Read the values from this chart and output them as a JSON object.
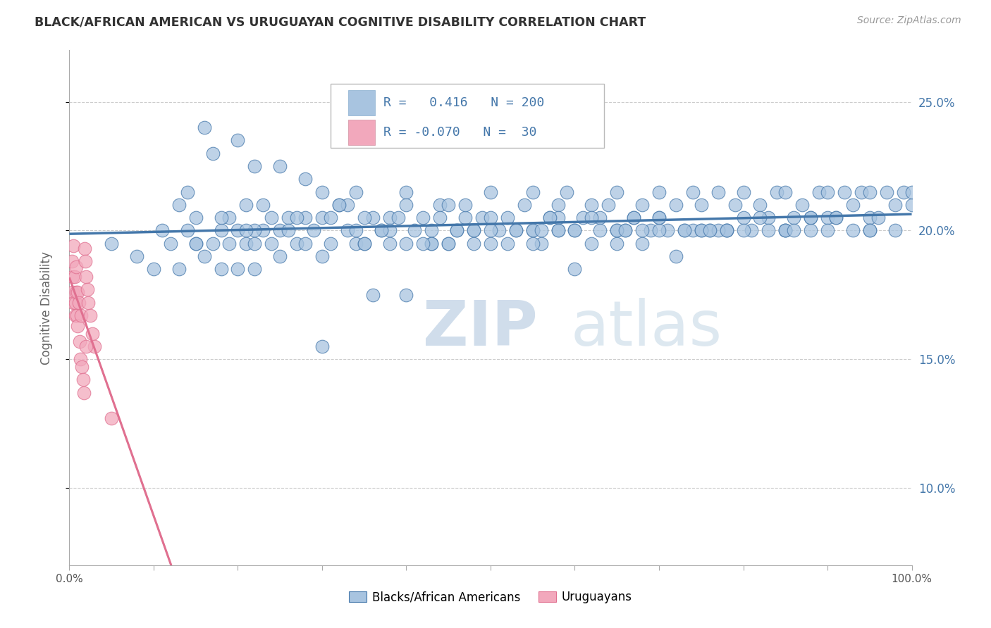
{
  "title": "BLACK/AFRICAN AMERICAN VS URUGUAYAN COGNITIVE DISABILITY CORRELATION CHART",
  "source": "Source: ZipAtlas.com",
  "ylabel": "Cognitive Disability",
  "r_blue": 0.416,
  "n_blue": 200,
  "r_pink": -0.07,
  "n_pink": 30,
  "xlim": [
    0.0,
    1.0
  ],
  "ylim": [
    0.07,
    0.27
  ],
  "yticks": [
    0.1,
    0.15,
    0.2,
    0.25
  ],
  "ytick_labels": [
    "10.0%",
    "15.0%",
    "20.0%",
    "25.0%"
  ],
  "xtick_labels_shown": [
    "0.0%",
    "100.0%"
  ],
  "blue_color": "#a8c4e0",
  "pink_color": "#f2a8bc",
  "blue_line_color": "#4477aa",
  "pink_line_solid_color": "#e07090",
  "pink_line_dash_color": "#f0b8cc",
  "watermark_zip": "ZIP",
  "watermark_atlas": "atlas",
  "background_color": "#ffffff",
  "grid_color": "#cccccc",
  "title_color": "#333333",
  "axis_label_color": "#666666",
  "legend_text_color": "#4477aa",
  "blue_scatter_x": [
    0.05,
    0.08,
    0.1,
    0.11,
    0.12,
    0.13,
    0.14,
    0.15,
    0.15,
    0.16,
    0.17,
    0.18,
    0.18,
    0.19,
    0.19,
    0.2,
    0.2,
    0.21,
    0.21,
    0.22,
    0.22,
    0.23,
    0.24,
    0.24,
    0.25,
    0.25,
    0.26,
    0.27,
    0.28,
    0.28,
    0.29,
    0.3,
    0.3,
    0.31,
    0.32,
    0.33,
    0.34,
    0.34,
    0.35,
    0.36,
    0.37,
    0.38,
    0.38,
    0.39,
    0.4,
    0.4,
    0.41,
    0.42,
    0.43,
    0.44,
    0.45,
    0.45,
    0.46,
    0.47,
    0.47,
    0.48,
    0.49,
    0.5,
    0.5,
    0.51,
    0.52,
    0.53,
    0.54,
    0.55,
    0.55,
    0.56,
    0.57,
    0.58,
    0.58,
    0.59,
    0.6,
    0.61,
    0.62,
    0.62,
    0.63,
    0.64,
    0.65,
    0.65,
    0.66,
    0.67,
    0.68,
    0.69,
    0.7,
    0.7,
    0.71,
    0.72,
    0.73,
    0.74,
    0.74,
    0.75,
    0.76,
    0.77,
    0.78,
    0.79,
    0.8,
    0.8,
    0.81,
    0.82,
    0.83,
    0.84,
    0.85,
    0.85,
    0.86,
    0.87,
    0.88,
    0.89,
    0.9,
    0.9,
    0.91,
    0.92,
    0.93,
    0.94,
    0.95,
    0.95,
    0.96,
    0.97,
    0.98,
    0.99,
    1.0,
    1.0,
    0.16,
    0.17,
    0.2,
    0.22,
    0.25,
    0.28,
    0.3,
    0.33,
    0.35,
    0.38,
    0.4,
    0.43,
    0.45,
    0.48,
    0.5,
    0.53,
    0.55,
    0.58,
    0.6,
    0.63,
    0.65,
    0.68,
    0.7,
    0.73,
    0.75,
    0.78,
    0.8,
    0.83,
    0.85,
    0.88,
    0.9,
    0.93,
    0.95,
    0.98,
    0.36,
    0.52,
    0.43,
    0.3,
    0.6,
    0.72,
    0.14,
    0.18,
    0.22,
    0.26,
    0.34,
    0.42,
    0.55,
    0.65,
    0.75,
    0.85,
    0.13,
    0.15,
    0.23,
    0.27,
    0.31,
    0.37,
    0.44,
    0.56,
    0.67,
    0.77,
    0.4,
    0.5,
    0.62,
    0.7,
    0.82,
    0.91,
    0.35,
    0.48,
    0.58,
    0.68,
    0.78,
    0.88,
    0.95,
    0.21,
    0.32,
    0.46,
    0.57,
    0.66,
    0.76,
    0.86
  ],
  "blue_scatter_y": [
    0.195,
    0.19,
    0.185,
    0.2,
    0.195,
    0.185,
    0.2,
    0.195,
    0.205,
    0.19,
    0.195,
    0.185,
    0.2,
    0.195,
    0.205,
    0.185,
    0.2,
    0.195,
    0.21,
    0.195,
    0.185,
    0.2,
    0.195,
    0.205,
    0.19,
    0.2,
    0.205,
    0.195,
    0.205,
    0.195,
    0.2,
    0.19,
    0.205,
    0.195,
    0.21,
    0.2,
    0.195,
    0.215,
    0.195,
    0.205,
    0.2,
    0.205,
    0.195,
    0.205,
    0.195,
    0.215,
    0.2,
    0.205,
    0.195,
    0.21,
    0.195,
    0.21,
    0.2,
    0.205,
    0.21,
    0.195,
    0.205,
    0.195,
    0.215,
    0.2,
    0.205,
    0.2,
    0.21,
    0.2,
    0.215,
    0.195,
    0.205,
    0.21,
    0.2,
    0.215,
    0.2,
    0.205,
    0.21,
    0.195,
    0.205,
    0.21,
    0.195,
    0.215,
    0.2,
    0.205,
    0.21,
    0.2,
    0.205,
    0.215,
    0.2,
    0.21,
    0.2,
    0.215,
    0.2,
    0.21,
    0.2,
    0.215,
    0.2,
    0.21,
    0.205,
    0.215,
    0.2,
    0.21,
    0.205,
    0.215,
    0.2,
    0.215,
    0.205,
    0.21,
    0.205,
    0.215,
    0.205,
    0.215,
    0.205,
    0.215,
    0.21,
    0.215,
    0.205,
    0.215,
    0.205,
    0.215,
    0.21,
    0.215,
    0.21,
    0.215,
    0.24,
    0.23,
    0.235,
    0.225,
    0.225,
    0.22,
    0.215,
    0.21,
    0.205,
    0.2,
    0.175,
    0.2,
    0.195,
    0.2,
    0.2,
    0.2,
    0.195,
    0.2,
    0.2,
    0.2,
    0.2,
    0.195,
    0.2,
    0.2,
    0.2,
    0.2,
    0.2,
    0.2,
    0.2,
    0.2,
    0.2,
    0.2,
    0.2,
    0.2,
    0.175,
    0.195,
    0.195,
    0.155,
    0.185,
    0.19,
    0.215,
    0.205,
    0.2,
    0.2,
    0.2,
    0.195,
    0.2,
    0.2,
    0.2,
    0.2,
    0.21,
    0.195,
    0.21,
    0.205,
    0.205,
    0.2,
    0.205,
    0.2,
    0.205,
    0.2,
    0.21,
    0.205,
    0.205,
    0.205,
    0.205,
    0.205,
    0.195,
    0.2,
    0.205,
    0.2,
    0.2,
    0.205,
    0.2,
    0.2,
    0.21,
    0.2,
    0.205,
    0.2,
    0.2,
    0.2
  ],
  "pink_scatter_x": [
    0.003,
    0.004,
    0.004,
    0.005,
    0.005,
    0.006,
    0.007,
    0.007,
    0.008,
    0.008,
    0.009,
    0.01,
    0.01,
    0.011,
    0.012,
    0.013,
    0.014,
    0.015,
    0.016,
    0.017,
    0.018,
    0.019,
    0.02,
    0.021,
    0.022,
    0.025,
    0.027,
    0.03,
    0.05,
    0.02
  ],
  "pink_scatter_y": [
    0.188,
    0.182,
    0.176,
    0.194,
    0.172,
    0.182,
    0.172,
    0.167,
    0.186,
    0.176,
    0.167,
    0.176,
    0.163,
    0.172,
    0.157,
    0.15,
    0.167,
    0.147,
    0.142,
    0.137,
    0.193,
    0.188,
    0.182,
    0.177,
    0.172,
    0.167,
    0.16,
    0.155,
    0.127,
    0.155
  ],
  "pink_line_x_solid_end": 0.22,
  "blue_line_intercept": 0.188,
  "blue_line_slope_total": 0.022
}
